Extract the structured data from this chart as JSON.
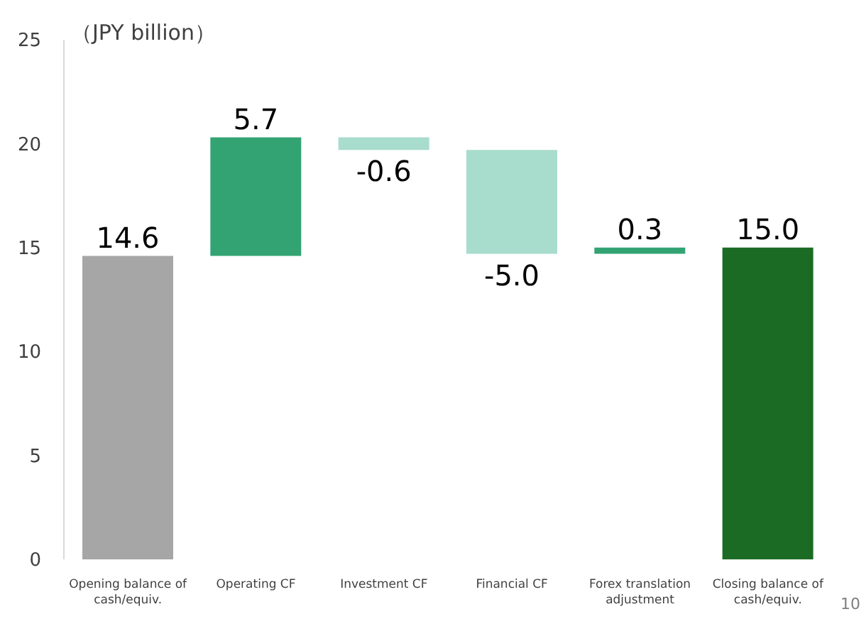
{
  "chart_data": {
    "type": "bar",
    "ylabel": "（JPY billion）",
    "categories": [
      "Opening balance of cash/equiv.",
      "Operating CF",
      "Investment CF",
      "Financial CF",
      "Forex translation adjustment",
      "Closing balance of cash/equiv."
    ],
    "values": [
      14.6,
      5.7,
      -0.6,
      -5.0,
      0.3,
      15.0
    ],
    "base": [
      0,
      14.6,
      20.3,
      19.7,
      14.7,
      0
    ],
    "colors": [
      "#a6a6a6",
      "#33a374",
      "#a8dccc",
      "#a8dccc",
      "#33a374",
      "#1b6b25"
    ],
    "value_labels": [
      "14.6",
      "5.7",
      "-0.6",
      "-5.0",
      "0.3",
      "15.0"
    ],
    "ylim": [
      0,
      25
    ],
    "yticks": [
      0,
      5,
      10,
      15,
      20,
      25
    ],
    "annotations": [
      "10"
    ]
  }
}
